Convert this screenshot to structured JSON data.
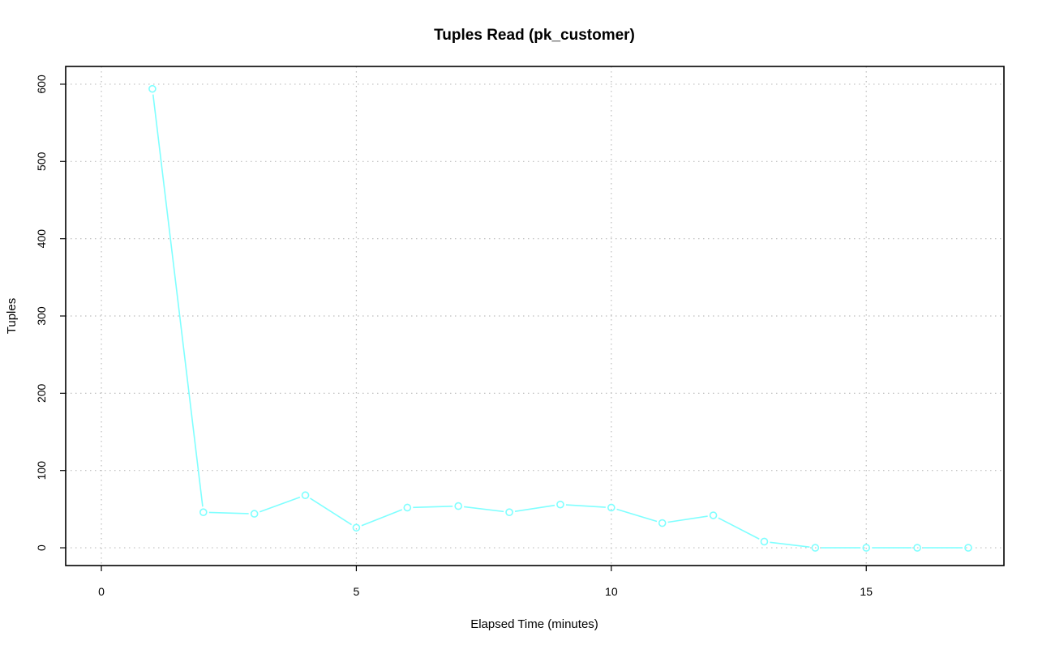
{
  "chart_data": {
    "type": "line",
    "title": "Tuples Read (pk_customer)",
    "xlabel": "Elapsed Time (minutes)",
    "ylabel": "Tuples",
    "xlim": [
      -0.7,
      17.7
    ],
    "ylim": [
      -23,
      623
    ],
    "xticks": [
      0,
      5,
      10,
      15
    ],
    "yticks": [
      0,
      100,
      200,
      300,
      400,
      500,
      600
    ],
    "grid": true,
    "markers": "open-circle",
    "series": [
      {
        "color": "#7fffff",
        "x": [
          1,
          2,
          3,
          4,
          5,
          6,
          7,
          8,
          9,
          10,
          11,
          12,
          13,
          14,
          15,
          16,
          17
        ],
        "y": [
          594,
          46,
          44,
          68,
          26,
          52,
          54,
          46,
          56,
          52,
          32,
          42,
          8,
          0,
          0,
          0,
          0
        ]
      }
    ]
  }
}
